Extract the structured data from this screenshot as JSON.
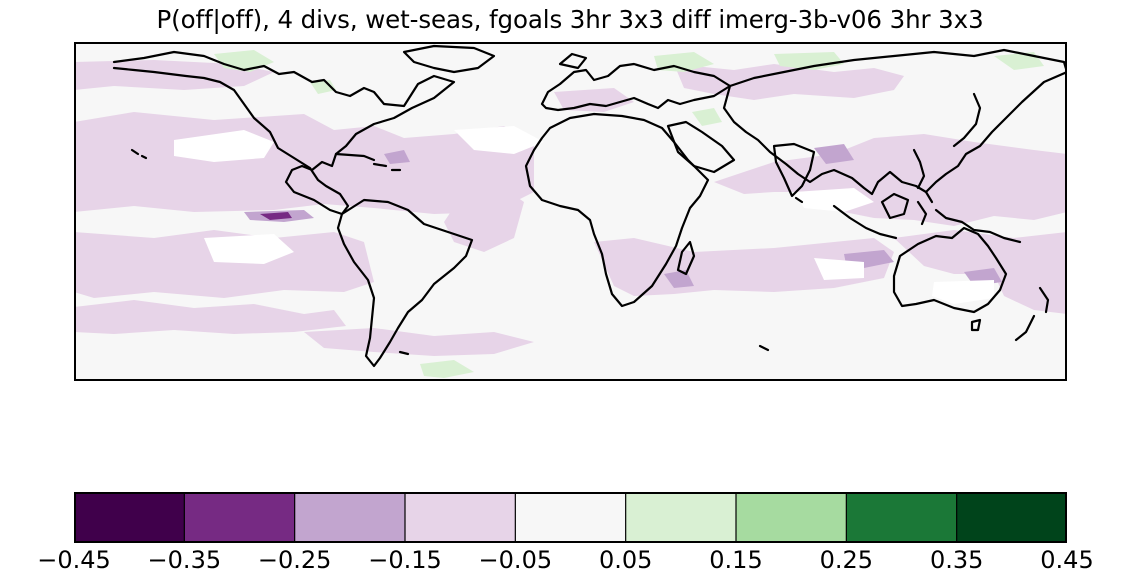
{
  "title": "P(off|off), 4 divs, wet-seas,  fgoals 3hr 3x3 diff imerg-3b-v06 3hr 3x3",
  "map": {
    "projection": "plate-carree",
    "extent_lon": [
      -180,
      180
    ],
    "extent_lat": [
      -60,
      60
    ],
    "background_color": "#f7f7f7",
    "coastline_color": "#000000"
  },
  "colorbar": {
    "colormap": "PRGn",
    "orientation": "horizontal",
    "boundaries": [
      -0.45,
      -0.35,
      -0.25,
      -0.15,
      -0.05,
      0.05,
      0.15,
      0.25,
      0.35,
      0.45
    ],
    "colors": [
      "#40004b",
      "#762a83",
      "#c2a5cf",
      "#e7d4e8",
      "#f7f7f7",
      "#d9f0d3",
      "#a6dba0",
      "#1b7837",
      "#00441b"
    ],
    "tick_labels": [
      "−0.45",
      "−0.35",
      "−0.25",
      "−0.15",
      "−0.05",
      "0.05",
      "0.15",
      "0.25",
      "0.35",
      "0.45"
    ]
  }
}
